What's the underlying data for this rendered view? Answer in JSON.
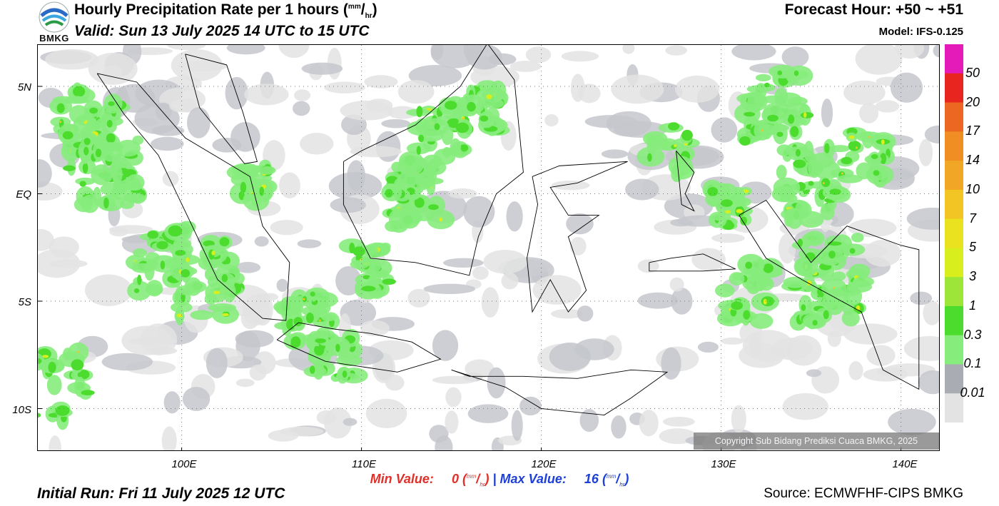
{
  "header": {
    "title": "Hourly Precipitation Rate per 1 hours",
    "title_unit_sup": "mm",
    "title_unit_sub": "hr",
    "valid": "Valid: Sun 13 July 2025 14 UTC to 15 UTC",
    "forecast_hour": "Forecast Hour: +50 ~ +51",
    "model": "Model: IFS-0.125",
    "logo_text": "BMKG"
  },
  "map": {
    "lat_labels": [
      "5N",
      "EQ",
      "5S",
      "10S"
    ],
    "lon_labels": [
      "100E",
      "110E",
      "120E",
      "130E",
      "140E"
    ],
    "copyright": "Copyright Sub Bidang Prediksi Cuaca BMKG, 2025"
  },
  "colorbar": {
    "labels": [
      "50",
      "20",
      "17",
      "14",
      "10",
      "7",
      "5",
      "3",
      "1",
      "0.3",
      "0.1",
      "0.01"
    ],
    "colors": [
      "#e41ab9",
      "#e8251f",
      "#ec6722",
      "#f08d23",
      "#f1a625",
      "#f2c525",
      "#eae21f",
      "#d9ee1d",
      "#9ee53a",
      "#4cdc2e",
      "#86ec7c",
      "#a9acb2",
      "#e3e3e3"
    ]
  },
  "footer": {
    "min_label": "Min Value:",
    "min_value": "0",
    "separator": "|",
    "max_label": "Max Value:",
    "max_value": "16",
    "unit_sup": "mm",
    "unit_sub": "hr",
    "initial_run": "Initial Run: Fri 11 July 2025 12 UTC",
    "source": "Source: ECMWFHF-CIPS BMKG"
  }
}
